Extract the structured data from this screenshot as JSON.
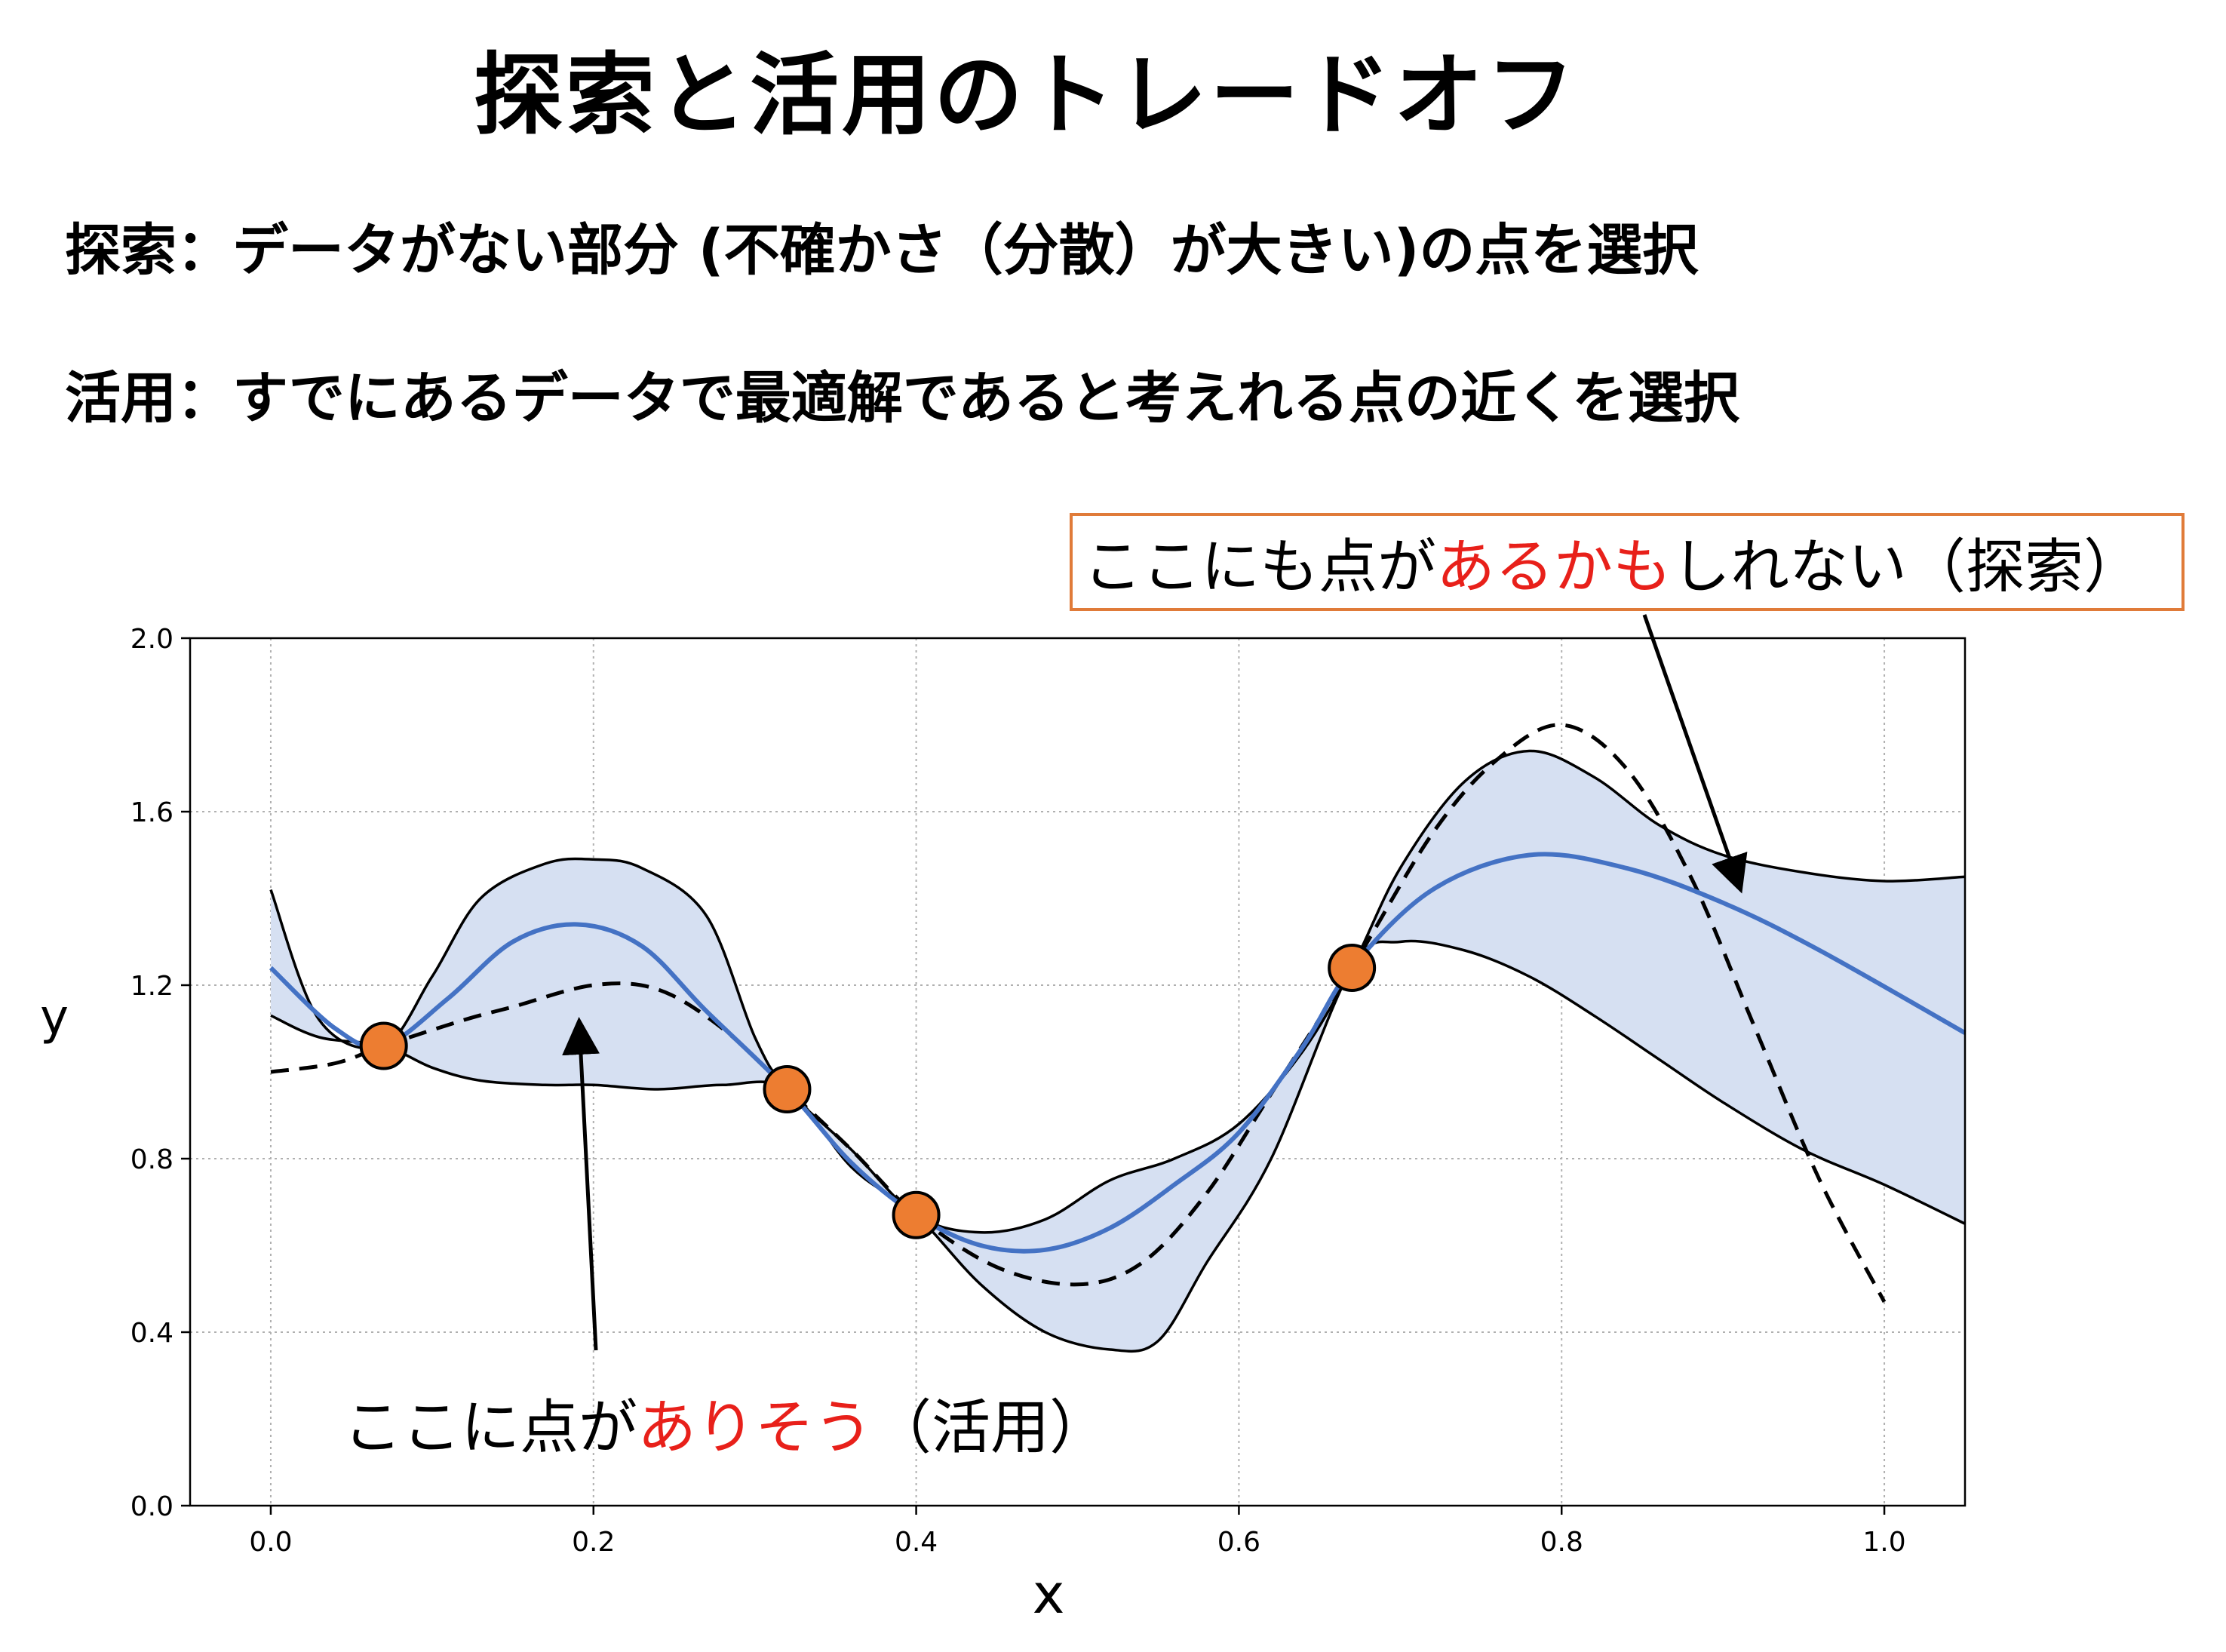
{
  "title": "探索と活用のトレードオフ",
  "bullets": {
    "explore": "探索：データがない部分 (不確かさ（分散）が大きい)の点を選択",
    "exploit": "活用：すでにあるデータで最適解であると考えれる点の近くを選択"
  },
  "annotations": {
    "explore": {
      "prefix": "ここにも点が",
      "highlight": "あるかも",
      "suffix": "しれない（探索）"
    },
    "exploit": {
      "prefix": "ここに点が",
      "highlight": "ありそう",
      "suffix": "（活用）"
    }
  },
  "chart_data": {
    "type": "line",
    "xlabel": "x",
    "ylabel": "y",
    "xlim": [
      -0.05,
      1.05
    ],
    "ylim": [
      0.0,
      2.0
    ],
    "xticks": [
      "0.0",
      "0.2",
      "0.4",
      "0.6",
      "0.8",
      "1.0"
    ],
    "yticks": [
      "0.0",
      "0.4",
      "0.8",
      "1.2",
      "1.6",
      "2.0"
    ],
    "grid": true,
    "colors": {
      "mean": "#4472c4",
      "band": "#d6e0f2",
      "points": "#ed7d31",
      "annotation_border": "#e07b39",
      "highlight": "#e8201a"
    },
    "observations": [
      {
        "x": 0.07,
        "y": 1.06
      },
      {
        "x": 0.32,
        "y": 0.96
      },
      {
        "x": 0.4,
        "y": 0.67
      },
      {
        "x": 0.67,
        "y": 1.24
      }
    ],
    "true_function": {
      "x": [
        0.0,
        0.04,
        0.07,
        0.12,
        0.15,
        0.2,
        0.24,
        0.28,
        0.32,
        0.36,
        0.4,
        0.45,
        0.5,
        0.54,
        0.58,
        0.62,
        0.67,
        0.72,
        0.76,
        0.8,
        0.84,
        0.88,
        0.92,
        0.96,
        1.0
      ],
      "y": [
        1.0,
        1.02,
        1.06,
        1.12,
        1.15,
        1.2,
        1.19,
        1.1,
        0.96,
        0.82,
        0.67,
        0.55,
        0.51,
        0.56,
        0.72,
        0.95,
        1.24,
        1.55,
        1.72,
        1.8,
        1.7,
        1.45,
        1.1,
        0.75,
        0.47
      ]
    },
    "mean": {
      "x": [
        0.0,
        0.04,
        0.07,
        0.11,
        0.15,
        0.19,
        0.23,
        0.27,
        0.32,
        0.36,
        0.4,
        0.44,
        0.48,
        0.52,
        0.56,
        0.6,
        0.64,
        0.67,
        0.72,
        0.78,
        0.84,
        0.9,
        0.96,
        1.05
      ],
      "y": [
        1.24,
        1.1,
        1.06,
        1.17,
        1.3,
        1.34,
        1.29,
        1.14,
        0.96,
        0.79,
        0.67,
        0.6,
        0.59,
        0.64,
        0.74,
        0.86,
        1.06,
        1.24,
        1.42,
        1.5,
        1.47,
        1.39,
        1.28,
        1.09
      ]
    },
    "upper": {
      "x": [
        0.0,
        0.03,
        0.07,
        0.1,
        0.13,
        0.17,
        0.2,
        0.23,
        0.27,
        0.3,
        0.32,
        0.36,
        0.4,
        0.44,
        0.48,
        0.52,
        0.56,
        0.6,
        0.64,
        0.67,
        0.7,
        0.74,
        0.78,
        0.82,
        0.86,
        0.9,
        0.95,
        1.0,
        1.05
      ],
      "y": [
        1.42,
        1.12,
        1.06,
        1.22,
        1.4,
        1.48,
        1.49,
        1.47,
        1.36,
        1.08,
        0.96,
        0.82,
        0.67,
        0.63,
        0.66,
        0.75,
        0.8,
        0.88,
        1.05,
        1.24,
        1.47,
        1.67,
        1.74,
        1.68,
        1.57,
        1.5,
        1.46,
        1.44,
        1.45
      ]
    },
    "lower": {
      "x": [
        0.0,
        0.03,
        0.07,
        0.1,
        0.13,
        0.17,
        0.2,
        0.24,
        0.28,
        0.32,
        0.36,
        0.4,
        0.44,
        0.48,
        0.52,
        0.55,
        0.58,
        0.62,
        0.67,
        0.7,
        0.74,
        0.78,
        0.82,
        0.86,
        0.9,
        0.95,
        1.0,
        1.05
      ],
      "y": [
        1.13,
        1.08,
        1.06,
        1.01,
        0.98,
        0.97,
        0.97,
        0.96,
        0.97,
        0.96,
        0.78,
        0.67,
        0.51,
        0.4,
        0.36,
        0.38,
        0.56,
        0.8,
        1.24,
        1.3,
        1.28,
        1.22,
        1.13,
        1.03,
        0.93,
        0.82,
        0.74,
        0.65
      ]
    }
  }
}
